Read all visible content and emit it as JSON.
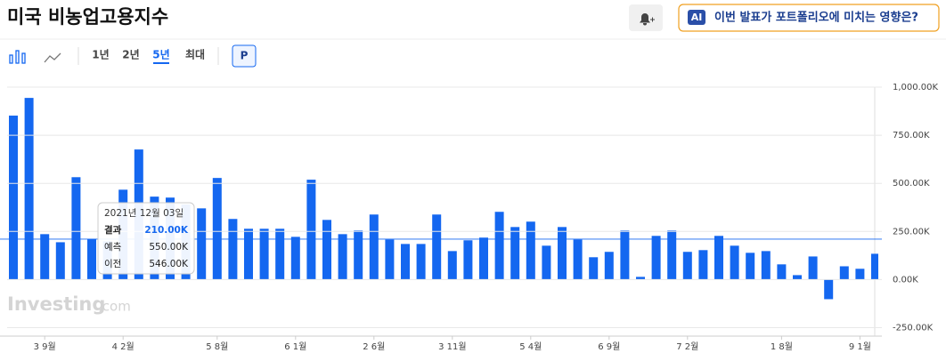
{
  "header": {
    "title": "미국 비농업고용지수",
    "ai_badge": "AI",
    "ai_prompt": "이번 발표가 포트폴리오에 미치는 영향은?"
  },
  "toolbar": {
    "ranges": [
      "1년",
      "2년",
      "5년",
      "최대"
    ],
    "active_range": 2,
    "p_button": "P"
  },
  "chart_data": {
    "type": "bar",
    "color": "#1467f0",
    "grid": true,
    "categories": [
      null,
      null,
      "3 9월",
      null,
      null,
      null,
      null,
      "4 2월",
      null,
      null,
      null,
      null,
      null,
      "5 8월",
      null,
      null,
      null,
      null,
      "6 1월",
      null,
      null,
      null,
      null,
      "2 6월",
      null,
      null,
      null,
      null,
      "3 11월",
      null,
      null,
      null,
      null,
      "5 4월",
      null,
      null,
      null,
      null,
      "6 9월",
      null,
      null,
      null,
      null,
      "7 2월",
      null,
      null,
      null,
      null,
      null,
      "1 8월",
      null,
      null,
      null,
      null,
      "9 1월",
      null
    ],
    "values": [
      852,
      944,
      236,
      194,
      532,
      210,
      199,
      467,
      676,
      431,
      426,
      390,
      370,
      528,
      315,
      264,
      264,
      264,
      222,
      519,
      310,
      236,
      255,
      338,
      208,
      185,
      185,
      338,
      148,
      204,
      218,
      352,
      273,
      301,
      176,
      273,
      208,
      116,
      144,
      255,
      14,
      227,
      255,
      144,
      153,
      227,
      176,
      139,
      148,
      79,
      23,
      120,
      -102,
      69,
      56,
      134
    ],
    "ylim": [
      -280,
      1000
    ],
    "yticks": [
      {
        "value": 1000,
        "label": "1,000.00K"
      },
      {
        "value": 750,
        "label": "750.00K"
      },
      {
        "value": 500,
        "label": "500.00K"
      },
      {
        "value": 250,
        "label": "250.00K"
      },
      {
        "value": 0,
        "label": "0.00K"
      },
      {
        "value": -250,
        "label": "-250.00K"
      }
    ],
    "watermark": [
      "Investing",
      ".com"
    ],
    "tooltip": {
      "index": 5,
      "date": "2021년 12월 03일",
      "rows": [
        [
          "결과",
          "210.00K"
        ],
        [
          "예측",
          "550.00K"
        ],
        [
          "이전",
          "546.00K"
        ]
      ]
    }
  }
}
